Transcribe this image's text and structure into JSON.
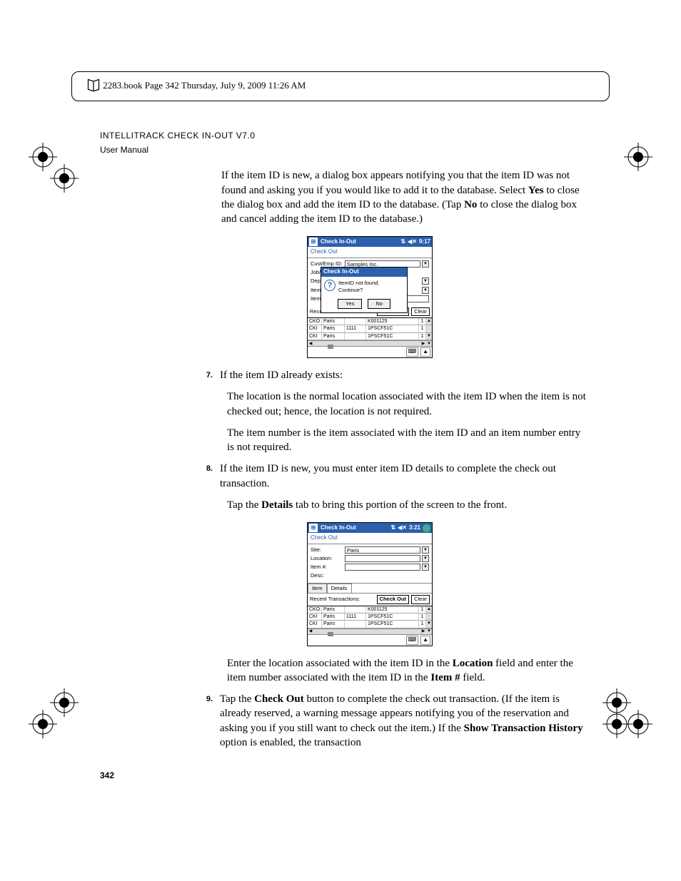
{
  "frame_header": {
    "text": "2283.book  Page 342  Thursday, July 9, 2009  11:26 AM"
  },
  "doc": {
    "title_line": "INTELLITRACK CHECK IN-OUT V7.0",
    "subtitle": "User Manual",
    "page_number": "342"
  },
  "paragraphs": {
    "intro_1": "If the item ID is new, a dialog box appears notifying you that the item ID was not found and asking you if you would like to add it to the database. Select ",
    "intro_yes": "Yes",
    "intro_2": " to close the dialog box and add the item ID to the database. (Tap ",
    "intro_no": "No",
    "intro_3": " to close the dialog box and cancel adding the item ID to the database.)",
    "n7_text": "If the item ID already exists:",
    "n7_p1": "The location is the normal location associated with the item ID when the item is not checked out; hence, the location is not required.",
    "n7_p2": "The item number is the item associated with the item ID and an item number entry is not required.",
    "n8_text": "If the item ID is new, you must enter item ID details to complete the check out transaction.",
    "n8_p1a": "Tap the ",
    "n8_p1b": "Details",
    "n8_p1c": " tab to bring this portion of the screen to the front.",
    "after2_1a": "Enter the location associated with the item ID in the ",
    "after2_1b": "Location",
    "after2_1c": " field and enter the item number associated with the item ID in the ",
    "after2_1d": "Item #",
    "after2_1e": " field.",
    "n9_1a": "Tap the ",
    "n9_1b": "Check Out",
    "n9_1c": " button to complete the check out transaction. (If the item is already reserved, a warning message appears notifying you of the reservation and asking you if you still want to check out the item.) If the ",
    "n9_1d": "Show Transaction History",
    "n9_1e": " option is enabled, the transaction"
  },
  "numbers": {
    "n7": "7.",
    "n8": "8.",
    "n9": "9."
  },
  "pda1": {
    "title": "Check In-Out",
    "time": "9:17",
    "tab": "Check Out",
    "labels": {
      "cust": "Cust/Emp ID:",
      "job": "Job/O",
      "depart": "Depart",
      "item": "Item",
      "item2": "Item"
    },
    "cust_value": "Samples Inc.",
    "dialog": {
      "title": "Check In-Out",
      "msg1": "ItemID not found.",
      "msg2": "Continue?",
      "yes": "Yes",
      "no": "No"
    },
    "trans_label": "Recent Transactions:",
    "checkout_btn": "Check Out",
    "clear_btn": "Clear",
    "rows": [
      {
        "c1": "CKO",
        "c2": "Paris",
        "c3": "",
        "c4": "K001125",
        "c5": "1"
      },
      {
        "c1": "CKI",
        "c2": "Paris",
        "c3": "1111",
        "c4": "1PSCF51C",
        "c5": "1"
      },
      {
        "c1": "CKI",
        "c2": "Paris",
        "c3": "",
        "c4": "1PSCF51C",
        "c5": "1"
      }
    ]
  },
  "pda2": {
    "title": "Check In-Out",
    "time": "3:21",
    "tab": "Check Out",
    "labels": {
      "site": "Site:",
      "location": "Location:",
      "itemnum": "Item #:",
      "desc": "Desc:"
    },
    "site_value": "Paris",
    "tabs": {
      "item": "Item",
      "details": "Details"
    },
    "trans_label": "Recent Transactions:",
    "checkout_btn": "Check Out",
    "clear_btn": "Clear",
    "rows": [
      {
        "c1": "CKO",
        "c2": "Paris",
        "c3": "",
        "c4": "K001125",
        "c5": "1"
      },
      {
        "c1": "CKI",
        "c2": "Paris",
        "c3": "1111",
        "c4": "1PSCF51C",
        "c5": "1"
      },
      {
        "c1": "CKI",
        "c2": "Paris",
        "c3": "",
        "c4": "1PSCF51C",
        "c5": "1"
      }
    ]
  }
}
